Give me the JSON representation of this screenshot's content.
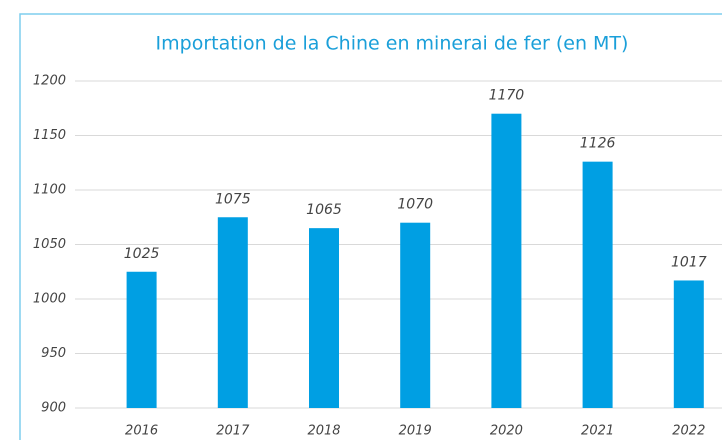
{
  "chart_data": {
    "type": "bar",
    "title": "Importation de la Chine en minerai de fer (en MT)",
    "categories": [
      "2016",
      "2017",
      "2018",
      "2019",
      "2020",
      "2021",
      "2022"
    ],
    "values": [
      1025,
      1075,
      1065,
      1070,
      1170,
      1126,
      1017
    ],
    "color": "#009fe3",
    "ylim": [
      900,
      1200
    ],
    "yticks": [
      900,
      950,
      1000,
      1050,
      1100,
      1150,
      1200
    ],
    "grid": true
  }
}
